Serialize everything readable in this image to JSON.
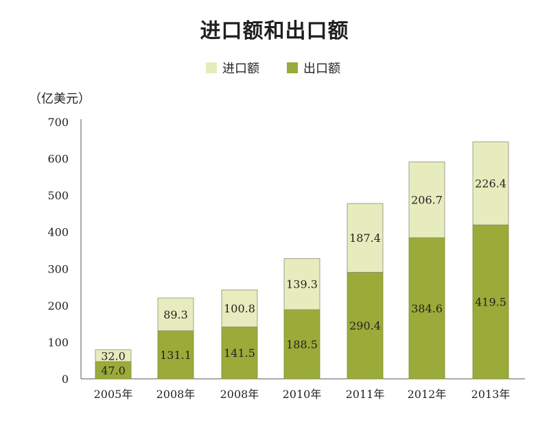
{
  "chart_data": {
    "type": "bar",
    "stacked": true,
    "title": "进口额和出口额",
    "unit_label": "（亿美元）",
    "categories": [
      "2005年",
      "2008年",
      "2008年",
      "2010年",
      "2011年",
      "2012年",
      "2013年"
    ],
    "series": [
      {
        "name": "出口额",
        "values": [
          47.0,
          131.1,
          141.5,
          188.5,
          290.4,
          384.6,
          419.5
        ],
        "color": "#9aab3a"
      },
      {
        "name": "进口额",
        "values": [
          32.0,
          89.3,
          100.8,
          139.3,
          187.4,
          206.7,
          226.4
        ],
        "color": "#e6ecbd"
      }
    ],
    "value_labels": {
      "出口额": [
        "47.0",
        "131.1",
        "141.5",
        "188.5",
        "290.4",
        "384.6",
        "419.5"
      ],
      "进口额": [
        "32.0",
        "89.3",
        "100.8",
        "139.3",
        "187.4",
        "206.7",
        "226.4"
      ]
    },
    "yticks": [
      0,
      100,
      200,
      300,
      400,
      500,
      600,
      700
    ],
    "ylim": [
      0,
      700
    ],
    "legend": {
      "position": "top",
      "order": [
        "进口额",
        "出口额"
      ]
    },
    "grid": false
  }
}
